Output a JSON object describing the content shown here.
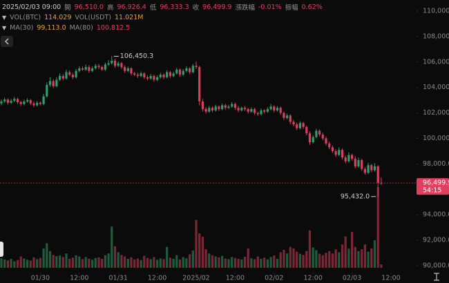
{
  "chart_data": {
    "type": "candlestick",
    "header": {
      "time": "2025/02/03 09:00",
      "fields": [
        {
          "label": "開",
          "value": "96,510.0"
        },
        {
          "label": "高",
          "value": "96,926.4"
        },
        {
          "label": "低",
          "value": "96,333.3"
        },
        {
          "label": "收",
          "value": "96,499.9"
        },
        {
          "label": "漲跌幅",
          "value": "-0.01%"
        },
        {
          "label": "振幅",
          "value": "0.62%"
        }
      ]
    },
    "volume_info": [
      {
        "label": "VOL(BTC)",
        "value": "114.029"
      },
      {
        "label": "VOL(USDT)",
        "value": "11.021M"
      }
    ],
    "ma_info": [
      {
        "label": "MA(30)",
        "value": "99,113.0"
      },
      {
        "label": "MA(80)",
        "value": "100,812.5"
      }
    ],
    "up_color": "#2f9e6c",
    "down_color": "#d9405f",
    "open": [
      102750,
      102900,
      103050,
      102800,
      102950,
      103100,
      102850,
      102700,
      102900,
      103000,
      102750,
      102600,
      102800,
      102700,
      103300,
      104200,
      104500,
      104100,
      104600,
      104900,
      104700,
      105200,
      105000,
      104800,
      105300,
      105500,
      105400,
      105600,
      105300,
      105500,
      105700,
      105600,
      105400,
      105800,
      105900,
      106100,
      105700,
      105900,
      105600,
      105300,
      105500,
      105100,
      105000,
      104900,
      105100,
      104800,
      104700,
      104900,
      104600,
      104800,
      105000,
      104800,
      105200,
      104900,
      105100,
      105400,
      105000,
      105300,
      105500,
      105200,
      105700,
      105600,
      102900,
      102300,
      102100,
      102400,
      102200,
      102500,
      102300,
      102600,
      102400,
      102500,
      102700,
      102400,
      102200,
      102400,
      102300,
      102100,
      102300,
      102000,
      101900,
      102200,
      102100,
      102300,
      102500,
      102200,
      102400,
      102000,
      101600,
      101800,
      101300,
      101100,
      100800,
      101200,
      100900,
      100400,
      99700,
      100100,
      100600,
      100300,
      100000,
      99600,
      99300,
      99000,
      98700,
      99100,
      98500,
      98200,
      98700,
      98400,
      97800,
      98300,
      97600,
      97300,
      97900,
      97500,
      97800,
      96510
    ],
    "high": [
      103050,
      103200,
      103150,
      103100,
      103250,
      103200,
      102950,
      103050,
      103150,
      103100,
      102900,
      102950,
      102900,
      103500,
      104400,
      104800,
      104650,
      104800,
      105100,
      105050,
      105400,
      105350,
      105150,
      105450,
      105650,
      105650,
      105800,
      105750,
      105650,
      105850,
      105850,
      105700,
      105950,
      106150,
      106450.3,
      106250,
      106050,
      106000,
      105750,
      105650,
      105600,
      105250,
      105150,
      105250,
      105200,
      104950,
      105050,
      105000,
      104950,
      105150,
      105100,
      105350,
      105300,
      105250,
      105550,
      105500,
      105450,
      105650,
      105600,
      105850,
      106050,
      105700,
      103100,
      102450,
      102550,
      102500,
      102650,
      102600,
      102750,
      102700,
      102650,
      102850,
      102800,
      102550,
      102500,
      102550,
      102400,
      102450,
      102400,
      102100,
      102350,
      102300,
      102450,
      102700,
      102600,
      102550,
      102500,
      102100,
      101950,
      101900,
      101450,
      101250,
      101350,
      101300,
      101000,
      100550,
      100250,
      100750,
      100700,
      100450,
      100150,
      99750,
      99450,
      99150,
      99300,
      99200,
      98650,
      98900,
      98800,
      98600,
      98500,
      98400,
      97750,
      98100,
      98000,
      98050,
      97900,
      96926.4
    ],
    "low": [
      102600,
      102800,
      102650,
      102700,
      102850,
      102700,
      102550,
      102600,
      102800,
      102600,
      102450,
      102500,
      102600,
      102600,
      103200,
      104050,
      103950,
      104000,
      104500,
      104550,
      104600,
      104900,
      104650,
      104700,
      105200,
      105300,
      105300,
      105150,
      105200,
      105400,
      105450,
      105300,
      105300,
      105700,
      105800,
      105550,
      105600,
      105450,
      105150,
      105200,
      104950,
      104900,
      104750,
      104800,
      104650,
      104550,
      104600,
      104450,
      104500,
      104700,
      104650,
      104700,
      104750,
      104800,
      105000,
      104850,
      104900,
      105200,
      105050,
      105100,
      105450,
      102600,
      102100,
      101950,
      102000,
      102050,
      102100,
      102150,
      102200,
      102250,
      102300,
      102400,
      102250,
      102050,
      102100,
      102150,
      101950,
      102000,
      101850,
      101750,
      101800,
      101950,
      102000,
      102200,
      102050,
      102100,
      101850,
      101450,
      101500,
      101100,
      100950,
      100650,
      100700,
      100750,
      100250,
      99500,
      99600,
      100000,
      100150,
      99850,
      99450,
      99150,
      98850,
      98550,
      98600,
      98350,
      98050,
      98100,
      98250,
      97650,
      97700,
      97450,
      97150,
      97200,
      97350,
      97400,
      95432.0,
      96333.3
    ],
    "close": [
      102900,
      103050,
      102800,
      102950,
      103100,
      102850,
      102700,
      102900,
      103000,
      102750,
      102600,
      102800,
      102700,
      103300,
      104200,
      104500,
      104100,
      104600,
      104900,
      104700,
      105200,
      105000,
      104800,
      105300,
      105500,
      105400,
      105600,
      105300,
      105500,
      105700,
      105600,
      105400,
      105800,
      105900,
      106100,
      105700,
      105900,
      105600,
      105300,
      105500,
      105100,
      105000,
      104900,
      105100,
      104800,
      104700,
      104900,
      104600,
      104800,
      105000,
      104800,
      105200,
      104900,
      105100,
      105400,
      105000,
      105300,
      105500,
      105200,
      105700,
      105600,
      102900,
      102300,
      102100,
      102400,
      102200,
      102500,
      102300,
      102600,
      102400,
      102500,
      102700,
      102400,
      102200,
      102400,
      102300,
      102100,
      102300,
      102000,
      101900,
      102200,
      102100,
      102300,
      102500,
      102200,
      102400,
      102000,
      101600,
      101800,
      101300,
      101100,
      100800,
      101200,
      100900,
      100400,
      99700,
      100100,
      100600,
      100300,
      100000,
      99600,
      99300,
      99000,
      98700,
      99100,
      98500,
      98200,
      98700,
      98400,
      97800,
      98300,
      97600,
      97300,
      97900,
      97500,
      97800,
      96510,
      96499.9
    ],
    "volume": [
      320,
      280,
      250,
      300,
      220,
      260,
      380,
      310,
      270,
      240,
      350,
      290,
      330,
      650,
      820,
      560,
      430,
      390,
      410,
      360,
      480,
      300,
      340,
      420,
      380,
      290,
      360,
      310,
      270,
      330,
      350,
      300,
      420,
      480,
      1380,
      720,
      520,
      430,
      380,
      300,
      350,
      280,
      310,
      260,
      400,
      330,
      290,
      360,
      270,
      310,
      290,
      700,
      340,
      300,
      420,
      280,
      360,
      320,
      450,
      580,
      1600,
      1150,
      1040,
      620,
      480,
      420,
      380,
      350,
      400,
      310,
      290,
      360,
      330,
      300,
      280,
      370,
      650,
      320,
      290,
      380,
      300,
      340,
      280,
      360,
      410,
      300,
      520,
      600,
      480,
      700,
      650,
      540,
      470,
      430,
      560,
      1250,
      680,
      590,
      470,
      420,
      500,
      560,
      480,
      620,
      520,
      780,
      1050,
      640,
      1200,
      700,
      560,
      620,
      780,
      540,
      650,
      920,
      2700,
      114.029
    ],
    "ylim": [
      89458,
      110867
    ],
    "yticks": [
      {
        "value": 90000,
        "label": "90,000.0"
      },
      {
        "value": 92000,
        "label": "92,000.0"
      },
      {
        "value": 94000,
        "label": "94,000.0"
      },
      {
        "value": 96000,
        "label": "96,000.0"
      },
      {
        "value": 98000,
        "label": "98,000.0"
      },
      {
        "value": 100000,
        "label": "100,000.0"
      },
      {
        "value": 102000,
        "label": "102,000.0"
      },
      {
        "value": 104000,
        "label": "104,000.0"
      },
      {
        "value": 106000,
        "label": "106,000.0"
      },
      {
        "value": 108000,
        "label": "108,000.0"
      },
      {
        "value": 110000,
        "label": "110,000.0"
      }
    ],
    "xticks": [
      {
        "value": 12,
        "label": "01/30"
      },
      {
        "value": 24,
        "label": "12:00"
      },
      {
        "value": 36,
        "label": "01/31"
      },
      {
        "value": 48,
        "label": "12:00"
      },
      {
        "value": 60,
        "label": "2025/02"
      },
      {
        "value": 72,
        "label": "12:00"
      },
      {
        "value": 84,
        "label": "02/02"
      },
      {
        "value": 96,
        "label": "12:00"
      },
      {
        "value": 108,
        "label": "02/03"
      },
      {
        "value": 120,
        "label": "12:00"
      }
    ],
    "annotations": {
      "high": "106,450.3",
      "low": "95,432.0"
    },
    "last_price_label": "96,499.9",
    "countdown": "54:15"
  }
}
